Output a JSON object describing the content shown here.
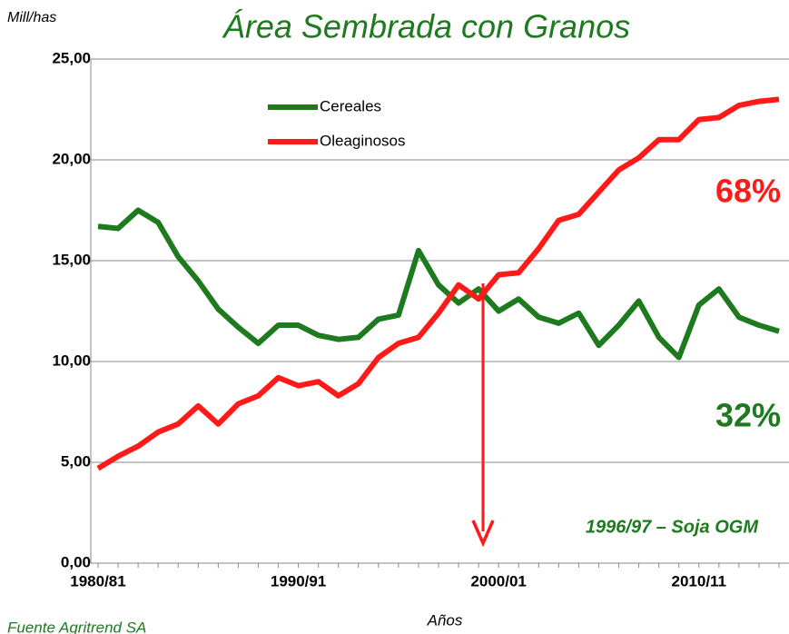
{
  "chart_data": {
    "type": "line",
    "title": "Área Sembrada con Granos",
    "y_label": "Mill/has",
    "x_label": "Años",
    "source": "Fuente Agritrend SA",
    "annotations": [
      "68%",
      "32%",
      "1996/97 – Soja OGM"
    ],
    "categories": [
      "1980/81",
      null,
      null,
      null,
      null,
      null,
      null,
      null,
      null,
      null,
      "1990/91",
      null,
      null,
      null,
      null,
      null,
      null,
      null,
      null,
      null,
      "2000/01",
      null,
      null,
      null,
      null,
      null,
      null,
      null,
      null,
      null,
      "2010/11",
      null,
      null,
      null,
      null
    ],
    "series": [
      {
        "name": "Cereales",
        "color": "#1e7a1e",
        "values": [
          16.7,
          16.6,
          17.5,
          16.9,
          15.2,
          14.0,
          12.6,
          11.7,
          10.9,
          11.8,
          11.8,
          11.3,
          11.1,
          11.2,
          12.1,
          12.3,
          15.5,
          13.8,
          12.9,
          13.6,
          12.5,
          13.1,
          12.2,
          11.9,
          12.4,
          10.8,
          11.8,
          13.0,
          11.2,
          10.2,
          12.8,
          13.6,
          12.2,
          11.8,
          11.5
        ]
      },
      {
        "name": "Oleaginosos",
        "color": "#ff1a1a",
        "values": [
          4.7,
          5.3,
          5.8,
          6.5,
          6.9,
          7.8,
          6.9,
          7.9,
          8.3,
          9.2,
          8.8,
          9.0,
          8.3,
          8.9,
          10.2,
          10.9,
          11.2,
          12.4,
          13.8,
          13.1,
          14.3,
          14.4,
          15.6,
          17.0,
          17.3,
          18.4,
          19.5,
          20.1,
          21.0,
          21.0,
          22.0,
          22.1,
          22.7,
          22.9,
          23.0
        ]
      }
    ],
    "ylim": [
      0,
      25
    ],
    "yticks": [
      {
        "value": 0,
        "label": "0,00"
      },
      {
        "value": 5,
        "label": "5,00"
      },
      {
        "value": 10,
        "label": "10,00"
      },
      {
        "value": 15,
        "label": "15,00"
      },
      {
        "value": 20,
        "label": "20,00"
      },
      {
        "value": 25,
        "label": "25,00"
      }
    ],
    "grid": true
  }
}
